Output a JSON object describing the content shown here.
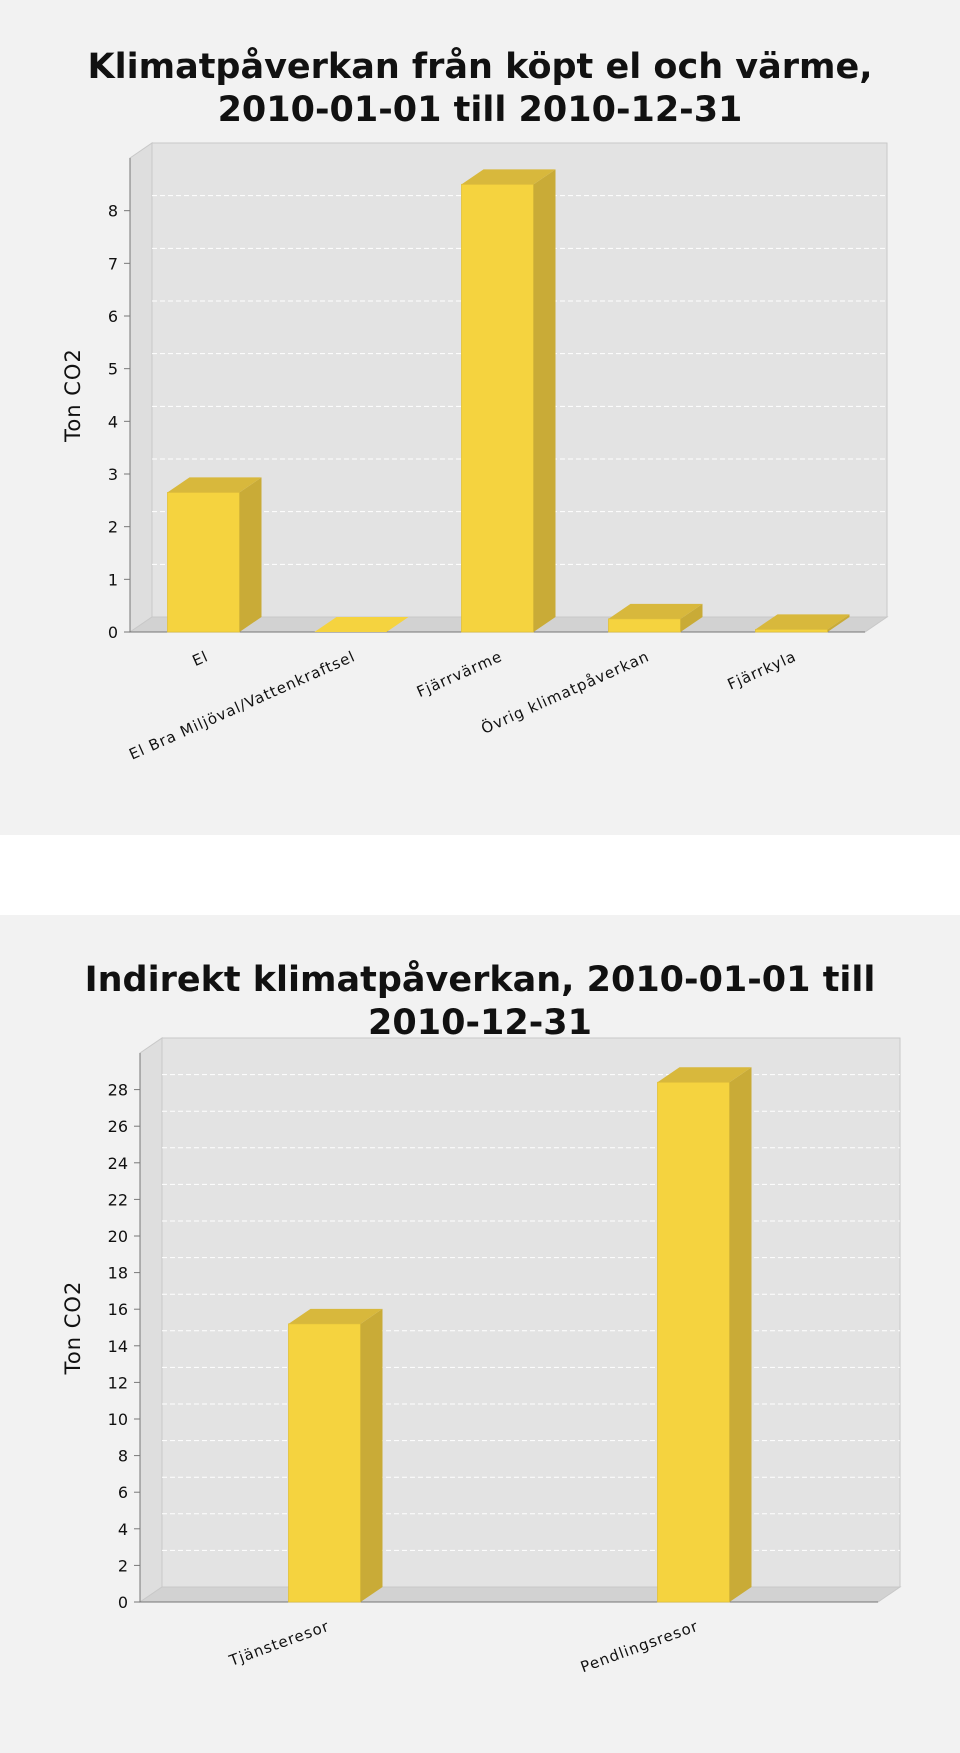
{
  "chart_data": [
    {
      "type": "bar",
      "title_lines": [
        "Klimatpåverkan från köpt el och värme,",
        "2010-01-01 till 2010-12-31"
      ],
      "ylabel": "Ton CO2",
      "categories": [
        "El",
        "El Bra Miljöval/Vattenkraftsel",
        "Fjärrvärme",
        "Övrig klimatpåverkan",
        "Fjärrkyla"
      ],
      "values": [
        2.65,
        0.0,
        8.5,
        0.25,
        0.05
      ],
      "ylim": [
        0,
        9
      ],
      "yticks": [
        0,
        1,
        2,
        3,
        4,
        5,
        6,
        7,
        8
      ],
      "grid": true,
      "bar_color": "#f5d33f",
      "bar_side_color": "#c9ab37",
      "bar_top_color": "#d8b83c"
    },
    {
      "type": "bar",
      "title_lines": [
        "Indirekt klimatpåverkan, 2010-01-01 till",
        "2010-12-31"
      ],
      "ylabel": "Ton CO2",
      "categories": [
        "Tjänsteresor",
        "Pendlingsresor"
      ],
      "values": [
        15.2,
        28.4
      ],
      "ylim": [
        0,
        30
      ],
      "yticks": [
        0,
        2,
        4,
        6,
        8,
        10,
        12,
        14,
        16,
        18,
        20,
        22,
        24,
        26,
        28
      ],
      "grid": true,
      "bar_color": "#f5d33f",
      "bar_side_color": "#c9ab37",
      "bar_top_color": "#d8b83c"
    }
  ]
}
